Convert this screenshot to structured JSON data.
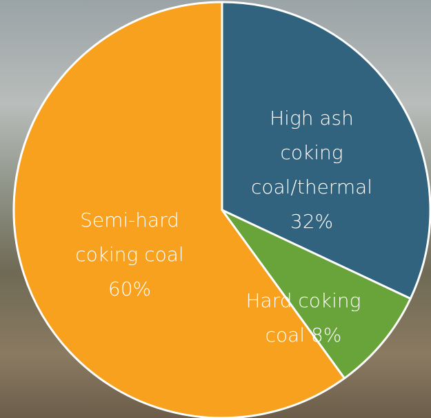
{
  "chart_data": {
    "type": "pie",
    "categories": [
      "High ash coking coal/thermal",
      "Hard coking coal",
      "Semi-hard coking coal"
    ],
    "values": [
      32,
      8,
      60
    ],
    "value_labels": [
      "32%",
      "8%",
      "60%"
    ],
    "colors": [
      "#31637e",
      "#69a43a",
      "#f7a11f"
    ]
  }
}
